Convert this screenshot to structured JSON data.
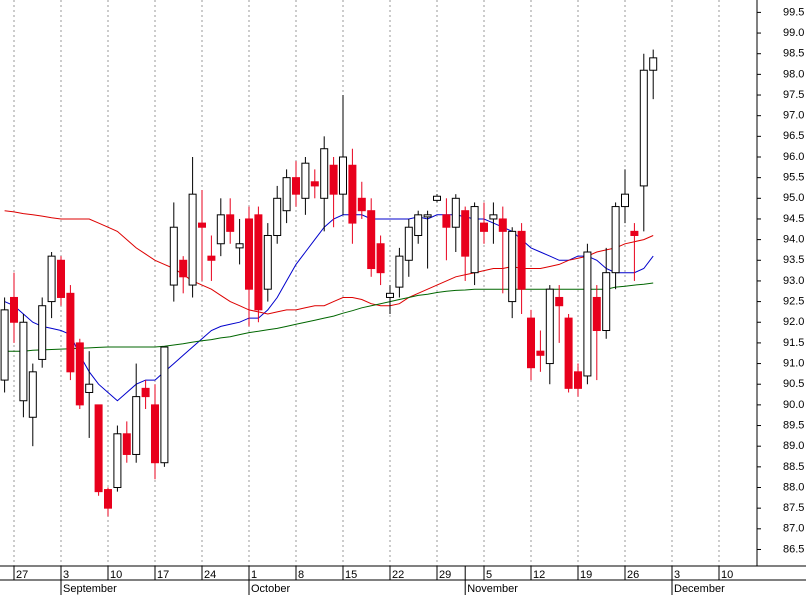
{
  "chart_data": {
    "type": "candlestick",
    "categories": [
      null,
      "27",
      null,
      null,
      null,
      null,
      "3",
      null,
      null,
      null,
      null,
      "10",
      null,
      null,
      null,
      null,
      "17",
      null,
      null,
      null,
      null,
      "24",
      null,
      null,
      null,
      null,
      "1",
      null,
      null,
      null,
      null,
      "8",
      null,
      null,
      null,
      null,
      "15",
      null,
      null,
      null,
      null,
      "22",
      null,
      null,
      null,
      null,
      "29",
      null,
      null,
      null,
      null,
      "5",
      null,
      null,
      null,
      null,
      "12",
      null,
      null,
      null,
      null,
      "19",
      null,
      null,
      null,
      null,
      "26",
      null,
      null,
      null,
      null,
      "3",
      null,
      null,
      null,
      null,
      "10"
    ],
    "months": [
      null,
      null,
      null,
      null,
      null,
      null,
      "September",
      null,
      null,
      null,
      null,
      null,
      null,
      null,
      null,
      null,
      null,
      null,
      null,
      null,
      null,
      null,
      null,
      null,
      null,
      null,
      "October",
      null,
      null,
      null,
      null,
      null,
      null,
      null,
      null,
      null,
      null,
      null,
      null,
      null,
      null,
      null,
      null,
      null,
      null,
      null,
      null,
      null,
      null,
      "November",
      null,
      null,
      null,
      null,
      null,
      null,
      null,
      null,
      null,
      null,
      null,
      null,
      null,
      null,
      null,
      null,
      null,
      null,
      null,
      null,
      null,
      "December",
      null,
      null,
      null,
      null,
      null
    ],
    "open": [
      90.6,
      92.6,
      90.1,
      89.7,
      91.1,
      92.5,
      93.5,
      92.7,
      91.5,
      90.3,
      90.0,
      87.95,
      88.0,
      89.3,
      88.8,
      90.4,
      90.0,
      88.6,
      92.9,
      93.5,
      92.9,
      94.4,
      93.6,
      93.9,
      94.6,
      93.8,
      94.5,
      94.6,
      92.8,
      94.1,
      94.7,
      95.5,
      95.0,
      95.4,
      95.0,
      95.8,
      95.1,
      95.8,
      95.0,
      94.7,
      93.9,
      92.6,
      92.85,
      93.5,
      94.1,
      94.55,
      94.95,
      94.6,
      94.3,
      94.7,
      93.2,
      94.4,
      94.5,
      94.5,
      92.5,
      94.2,
      92.1,
      91.3,
      91.0,
      92.6,
      92.1,
      90.8,
      90.7,
      92.6,
      91.8,
      93.2,
      94.8,
      94.2,
      95.3,
      98.1,
      null,
      null,
      null,
      null,
      null,
      null,
      null
    ],
    "high": [
      92.6,
      93.2,
      92.2,
      91.0,
      92.6,
      93.7,
      93.6,
      92.9,
      91.6,
      91.3,
      90.0,
      88.0,
      89.5,
      89.6,
      91.0,
      90.6,
      90.5,
      91.4,
      94.9,
      93.6,
      96.0,
      95.2,
      94.1,
      95.0,
      95.0,
      94.5,
      94.8,
      94.8,
      94.4,
      95.3,
      95.7,
      95.9,
      96.0,
      95.7,
      96.5,
      96.0,
      97.5,
      96.2,
      95.4,
      95.0,
      94.1,
      92.9,
      93.8,
      94.5,
      94.7,
      94.7,
      95.1,
      95.0,
      95.1,
      94.8,
      94.9,
      94.9,
      94.9,
      94.8,
      94.3,
      94.4,
      92.3,
      91.8,
      92.9,
      92.9,
      92.2,
      91.0,
      93.9,
      92.9,
      93.8,
      94.9,
      95.7,
      94.4,
      98.5,
      98.6,
      null,
      null,
      null,
      null,
      null,
      null,
      null
    ],
    "low": [
      90.3,
      91.5,
      89.7,
      89.0,
      90.9,
      92.1,
      92.4,
      90.6,
      89.9,
      89.2,
      87.8,
      87.3,
      87.9,
      88.6,
      88.6,
      89.9,
      88.2,
      88.5,
      92.5,
      92.7,
      92.6,
      93.0,
      93.0,
      93.6,
      93.9,
      93.4,
      91.9,
      92.0,
      92.5,
      93.9,
      94.4,
      94.8,
      94.6,
      95.0,
      94.2,
      94.3,
      94.6,
      93.9,
      94.5,
      93.1,
      92.9,
      92.2,
      92.6,
      93.1,
      93.9,
      93.3,
      94.9,
      93.5,
      93.7,
      93.0,
      92.9,
      93.9,
      93.9,
      92.7,
      92.1,
      92.2,
      90.6,
      90.8,
      90.5,
      91.5,
      90.3,
      90.2,
      90.5,
      90.6,
      91.6,
      92.8,
      94.4,
      93.0,
      94.2,
      97.4,
      null,
      null,
      null,
      null,
      null,
      null,
      null
    ],
    "close": [
      92.3,
      92.0,
      92.0,
      90.8,
      92.4,
      93.6,
      92.6,
      90.8,
      90.0,
      90.5,
      87.9,
      87.5,
      89.3,
      88.8,
      90.2,
      90.2,
      88.6,
      91.4,
      94.3,
      93.1,
      95.1,
      94.3,
      93.5,
      94.6,
      94.2,
      93.9,
      92.8,
      92.3,
      94.1,
      95.0,
      95.5,
      95.1,
      95.85,
      95.3,
      96.2,
      95.1,
      96.0,
      94.4,
      94.7,
      93.3,
      93.2,
      92.7,
      93.6,
      94.3,
      94.6,
      94.6,
      95.05,
      94.3,
      95.0,
      93.6,
      94.8,
      94.2,
      94.6,
      94.2,
      94.2,
      92.8,
      90.9,
      91.2,
      92.8,
      92.4,
      90.4,
      90.4,
      93.7,
      91.8,
      93.2,
      94.8,
      95.1,
      94.1,
      98.1,
      98.4,
      null,
      null,
      null,
      null,
      null,
      null,
      null
    ],
    "up_color": "#ffffff",
    "down_color": "#e8001c",
    "outline_color": "#000000",
    "series": [
      {
        "color": "#0000cc",
        "values": [
          92.5,
          92.4,
          92.2,
          92.0,
          91.9,
          91.85,
          91.8,
          91.7,
          91.2,
          90.8,
          90.5,
          90.3,
          90.1,
          90.3,
          90.5,
          90.6,
          90.6,
          90.8,
          91.0,
          91.2,
          91.4,
          91.6,
          91.8,
          91.9,
          91.95,
          92.0,
          92.1,
          92.1,
          92.3,
          92.6,
          93.0,
          93.4,
          93.7,
          94.0,
          94.3,
          94.5,
          94.6,
          94.6,
          94.6,
          94.5,
          94.5,
          94.5,
          94.5,
          94.5,
          94.55,
          94.5,
          94.6,
          94.6,
          94.6,
          94.55,
          94.5,
          94.5,
          94.4,
          94.3,
          94.2,
          94.0,
          93.8,
          93.7,
          93.6,
          93.5,
          93.5,
          93.6,
          93.6,
          93.5,
          93.3,
          93.2,
          93.2,
          93.2,
          93.3,
          93.6,
          null,
          null,
          null,
          null,
          null,
          null,
          null
        ]
      },
      {
        "color": "#dd0000",
        "values": [
          94.7,
          94.67,
          94.63,
          94.6,
          94.57,
          94.53,
          94.5,
          94.5,
          94.5,
          94.5,
          94.4,
          94.3,
          94.2,
          94.0,
          93.8,
          93.65,
          93.5,
          93.4,
          93.3,
          93.15,
          93.0,
          92.9,
          92.8,
          92.65,
          92.5,
          92.4,
          92.3,
          92.25,
          92.2,
          92.25,
          92.3,
          92.3,
          92.35,
          92.4,
          92.4,
          92.5,
          92.6,
          92.6,
          92.55,
          92.45,
          92.4,
          92.4,
          92.45,
          92.6,
          92.7,
          92.8,
          92.9,
          93.0,
          93.1,
          93.15,
          93.2,
          93.25,
          93.3,
          93.3,
          93.35,
          93.3,
          93.3,
          93.3,
          93.35,
          93.4,
          93.5,
          93.55,
          93.6,
          93.7,
          93.75,
          93.8,
          93.9,
          93.95,
          94.0,
          94.1,
          null,
          null,
          null,
          null,
          null,
          null,
          null
        ]
      },
      {
        "color": "#006600",
        "values": [
          91.3,
          91.3,
          91.3,
          91.32,
          91.33,
          91.34,
          91.35,
          91.36,
          91.37,
          91.38,
          91.39,
          91.4,
          91.4,
          91.4,
          91.4,
          91.4,
          91.4,
          91.42,
          91.45,
          91.48,
          91.52,
          91.55,
          91.58,
          91.62,
          91.65,
          91.7,
          91.75,
          91.78,
          91.82,
          91.85,
          91.9,
          91.95,
          92.0,
          92.05,
          92.1,
          92.15,
          92.22,
          92.28,
          92.35,
          92.4,
          92.45,
          92.5,
          92.55,
          92.6,
          92.65,
          92.68,
          92.72,
          92.75,
          92.77,
          92.78,
          92.8,
          92.8,
          92.8,
          92.8,
          92.8,
          92.8,
          92.8,
          92.8,
          92.8,
          92.8,
          92.8,
          92.8,
          92.8,
          92.8,
          92.8,
          92.85,
          92.87,
          92.9,
          92.92,
          92.95,
          null,
          null,
          null,
          null,
          null,
          null,
          null
        ]
      }
    ],
    "ylim": [
      86.1,
      99.8
    ],
    "yticks": [
      {
        "value": 86.5,
        "label": "86.5"
      },
      {
        "value": 87,
        "label": "87.0"
      },
      {
        "value": 87.5,
        "label": "87.5"
      },
      {
        "value": 88,
        "label": "88.0"
      },
      {
        "value": 88.5,
        "label": "88.5"
      },
      {
        "value": 89,
        "label": "89.0"
      },
      {
        "value": 89.5,
        "label": "89.5"
      },
      {
        "value": 90,
        "label": "90.0"
      },
      {
        "value": 90.5,
        "label": "90.5"
      },
      {
        "value": 91,
        "label": "91.0"
      },
      {
        "value": 91.5,
        "label": "91.5"
      },
      {
        "value": 92,
        "label": "92.0"
      },
      {
        "value": 92.5,
        "label": "92.5"
      },
      {
        "value": 93,
        "label": "93.0"
      },
      {
        "value": 93.5,
        "label": "93.5"
      },
      {
        "value": 94,
        "label": "94.0"
      },
      {
        "value": 94.5,
        "label": "94.5"
      },
      {
        "value": 95,
        "label": "95.0"
      },
      {
        "value": 95.5,
        "label": "95.5"
      },
      {
        "value": 96,
        "label": "96.0"
      },
      {
        "value": 96.5,
        "label": "96.5"
      },
      {
        "value": 97,
        "label": "97.0"
      },
      {
        "value": 97.5,
        "label": "97.5"
      },
      {
        "value": 98,
        "label": "98.0"
      },
      {
        "value": 98.5,
        "label": "98.5"
      },
      {
        "value": 99,
        "label": "99.0"
      },
      {
        "value": 99.5,
        "label": "99.5"
      }
    ],
    "grid": true
  }
}
